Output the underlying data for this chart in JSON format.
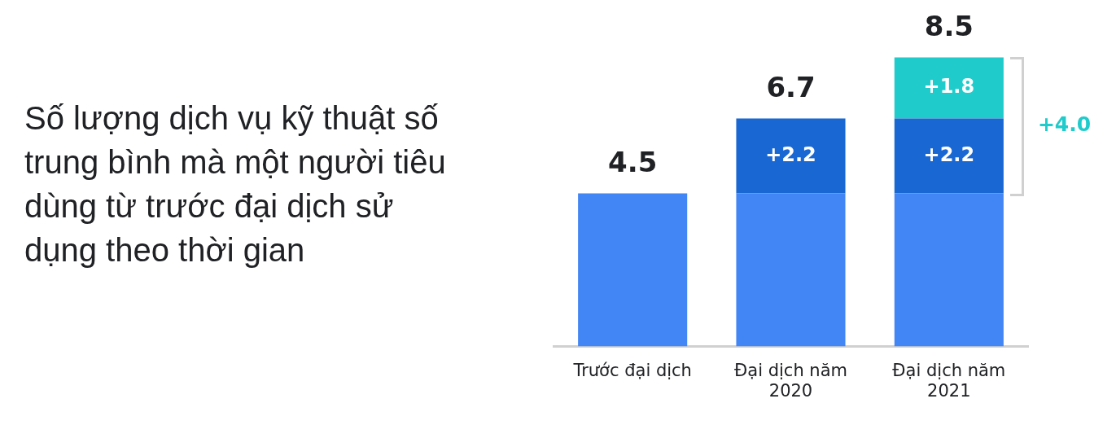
{
  "chart_data": {
    "type": "bar",
    "title": "Số lượng dịch vụ kỹ thuật số trung bình mà một người tiêu dùng từ trước đại dịch sử dụng theo thời gian",
    "categories": [
      "Trước đại dịch",
      "Đại dịch năm 2020",
      "Đại dịch năm 2021"
    ],
    "stacked": true,
    "legend": false,
    "grid": false,
    "tick_labels": "x",
    "series": [
      {
        "color": "#4285f4",
        "values": [
          4.5,
          4.5,
          4.5
        ]
      },
      {
        "color": "#1967d2",
        "values": [
          null,
          2.2,
          2.2
        ],
        "value_labels": [
          null,
          "+2.2",
          "+2.2"
        ]
      },
      {
        "color": "#1fcbcb",
        "values": [
          null,
          null,
          1.8
        ],
        "value_labels": [
          null,
          null,
          "+1.8"
        ]
      }
    ],
    "totals": [
      "4.5",
      "6.7",
      "8.5"
    ],
    "annotations": [
      "+4.0"
    ]
  }
}
